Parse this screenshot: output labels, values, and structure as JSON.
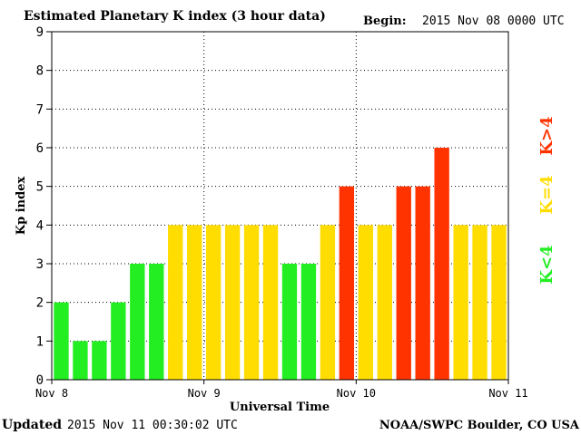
{
  "header": {
    "title": "Estimated Planetary K index (3 hour data)",
    "begin_label": "Begin:",
    "begin_value": "2015 Nov 08 0000 UTC"
  },
  "footer": {
    "updated_label": "Updated",
    "updated_value": "2015 Nov 11 00:30:02 UTC",
    "source": "NOAA/SWPC Boulder, CO USA"
  },
  "legend": {
    "high": "K>4",
    "equal": "K=4",
    "low": "K<4"
  },
  "colors": {
    "low": "#22ee22",
    "equal": "#ffdd00",
    "high": "#ff3300",
    "axis": "#000000",
    "grid": "#000000"
  },
  "chart_data": {
    "type": "bar",
    "title": "Estimated Planetary K index (3 hour data)",
    "xlabel": "Universal Time",
    "ylabel": "Kp index",
    "ylim": [
      0,
      9
    ],
    "yticks": [
      "0",
      "1",
      "2",
      "3",
      "4",
      "5",
      "6",
      "7",
      "8",
      "9"
    ],
    "day_labels": [
      "Nov 8",
      "Nov 9",
      "Nov 10",
      "Nov 11"
    ],
    "grid": true,
    "legend_position": "right",
    "values": [
      2,
      1,
      1,
      2,
      3,
      3,
      4,
      4,
      4,
      4,
      4,
      4,
      3,
      3,
      4,
      5,
      4,
      4,
      5,
      5,
      6,
      4,
      4,
      4
    ]
  }
}
